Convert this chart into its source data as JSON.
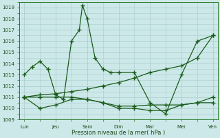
{
  "xlabel": "Pression niveau de la mer( hPa )",
  "background_color": "#cce8e8",
  "grid_color": "#aacccc",
  "line_color": "#1a5c1a",
  "ylim": [
    1009,
    1019.5
  ],
  "ytick_values": [
    1009,
    1010,
    1011,
    1012,
    1013,
    1014,
    1015,
    1016,
    1017,
    1018,
    1019
  ],
  "x_label_names": [
    "Lun",
    "Jeu",
    "Sam",
    "Dim",
    "Mar",
    "Mer",
    "Ven"
  ],
  "lines": [
    {
      "x": [
        0,
        0.5,
        1,
        1.5,
        2,
        2.5,
        3,
        3.5,
        3.7,
        4,
        4.5,
        5,
        5.5,
        6,
        7,
        8,
        9,
        10,
        11,
        12
      ],
      "y": [
        1013.0,
        1013.7,
        1014.2,
        1013.5,
        1011.2,
        1010.8,
        1016.0,
        1017.0,
        1019.2,
        1018.0,
        1014.5,
        1013.5,
        1013.2,
        1013.2,
        1013.2,
        1010.5,
        1009.5,
        1013.0,
        1016.0,
        1016.5
      ]
    },
    {
      "x": [
        0,
        1,
        2,
        3,
        4,
        5,
        6,
        7,
        8,
        9,
        10,
        11,
        12
      ],
      "y": [
        1011.0,
        1011.0,
        1011.0,
        1011.0,
        1010.8,
        1010.5,
        1010.2,
        1010.2,
        1010.3,
        1010.3,
        1010.3,
        1010.5,
        1011.0
      ]
    },
    {
      "x": [
        0,
        1,
        2,
        3,
        4,
        5,
        6,
        7,
        8,
        9,
        10,
        11,
        12
      ],
      "y": [
        1011.0,
        1010.0,
        1010.3,
        1010.8,
        1010.8,
        1010.5,
        1010.0,
        1010.0,
        1009.8,
        1009.8,
        1010.3,
        1010.5,
        1010.5
      ]
    },
    {
      "x": [
        0,
        1,
        2,
        3,
        4,
        5,
        6,
        7,
        8,
        9,
        10,
        11,
        12
      ],
      "y": [
        1011.0,
        1011.2,
        1011.3,
        1011.5,
        1011.7,
        1012.0,
        1012.3,
        1012.7,
        1013.2,
        1013.5,
        1013.8,
        1014.5,
        1016.5
      ]
    }
  ]
}
